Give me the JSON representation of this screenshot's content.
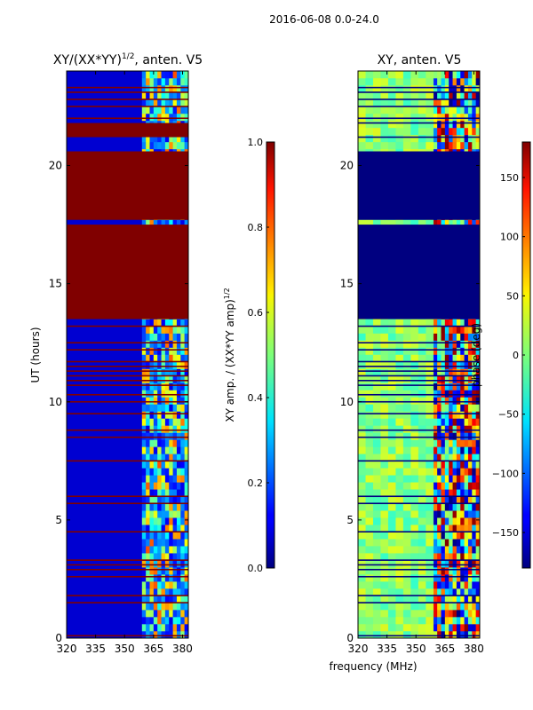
{
  "chart_data": {
    "suptitle": "2016-06-08 0.0-24.0",
    "xlabel": "frequency (MHz)",
    "panels": [
      {
        "id": "amp",
        "type": "heatmap",
        "title_main": "XY/(XX*YY)",
        "title_exp": "1/2",
        "title_tail": ", anten. V5",
        "ylabel": "UT (hours)",
        "xlim": [
          320,
          383
        ],
        "ylim": [
          0,
          24
        ],
        "xticks": [
          320,
          335,
          350,
          365,
          380
        ],
        "yticks": [
          0,
          5,
          10,
          15,
          20
        ],
        "colormap": "jet",
        "colorbar": {
          "label_main": "XY amp. / (XX*YY amp)",
          "label_exp": "1/2",
          "vmin": 0.0,
          "vmax": 1.0,
          "ticks": [
            "0.0",
            "0.2",
            "0.4",
            "0.6",
            "0.8",
            "1.0"
          ],
          "tick_values": [
            0.0,
            0.2,
            0.4,
            0.6,
            0.8,
            1.0
          ]
        },
        "saturated_bands_hours": [
          [
            13.5,
            17.5
          ],
          [
            17.7,
            20.6
          ],
          [
            21.2,
            21.8
          ]
        ],
        "flag_lines_hours": [
          0.1,
          1.5,
          1.8,
          2.6,
          2.9,
          3.1,
          3.3,
          4.5,
          5.7,
          6.0,
          7.5,
          8.5,
          8.8,
          9.5,
          10.0,
          10.3,
          10.7,
          10.9,
          11.1,
          11.3,
          11.5,
          11.7,
          12.2,
          12.5,
          13.2,
          22.0,
          22.5,
          22.8,
          23.1,
          23.3
        ],
        "background_value": 0.08,
        "active_band_mhz": [
          359,
          383
        ]
      },
      {
        "id": "phase",
        "type": "heatmap",
        "title_main": "XY, anten. V5",
        "xlim": [
          320,
          383
        ],
        "ylim": [
          0,
          24
        ],
        "xticks": [
          320,
          335,
          350,
          365,
          380
        ],
        "yticks": [
          0,
          5,
          10,
          15,
          20
        ],
        "colormap": "jet",
        "colorbar": {
          "label_main": "phase (deg)",
          "vmin": -180,
          "vmax": 180,
          "ticks": [
            "150",
            "100",
            "50",
            "0",
            "−50",
            "−100",
            "−150"
          ],
          "tick_values": [
            150,
            100,
            50,
            0,
            -50,
            -100,
            -150
          ]
        },
        "flagged_bands_hours": [
          [
            13.5,
            17.5
          ],
          [
            17.7,
            20.6
          ]
        ],
        "flag_lines_hours": [
          0.1,
          1.5,
          1.8,
          2.6,
          2.9,
          3.1,
          3.3,
          4.5,
          5.7,
          6.0,
          7.5,
          8.5,
          8.8,
          9.5,
          10.0,
          10.3,
          10.7,
          10.9,
          11.1,
          11.3,
          11.5,
          11.7,
          12.2,
          12.5,
          13.2,
          21.2,
          21.8,
          22.0,
          22.5,
          22.8,
          23.1,
          23.3
        ],
        "background_value": 5,
        "active_band_mhz": [
          359,
          383
        ]
      }
    ]
  }
}
